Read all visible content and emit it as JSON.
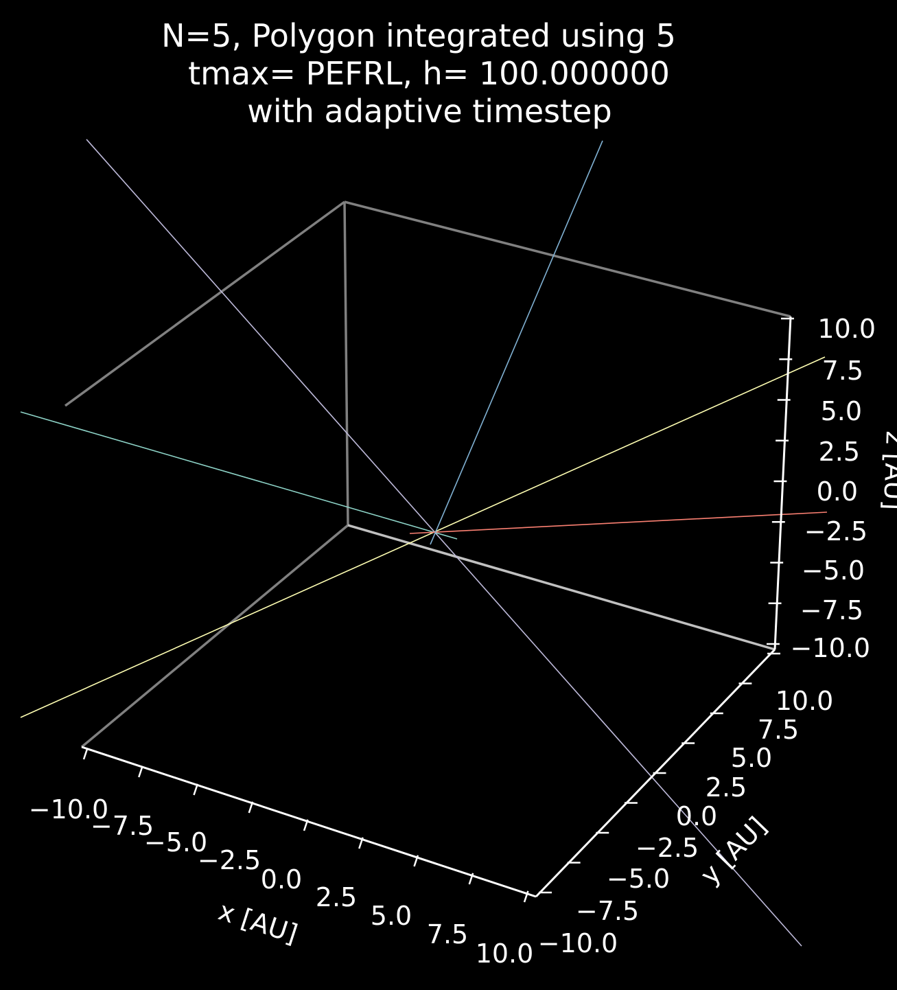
{
  "chart_data": {
    "type": "line",
    "projection": "3d",
    "title_lines": [
      "N=5, Polygon integrated using 5",
      "tmax= PEFRL, h= 100.000000",
      "with adaptive timestep"
    ],
    "xlabel": "x [AU]",
    "ylabel": "y [AU]",
    "zlabel": "z [AU]",
    "xlim": [
      -10,
      10
    ],
    "ylim": [
      -10,
      10
    ],
    "zlim": [
      -10,
      10
    ],
    "x_ticks": [
      "−10.0",
      "−7.5",
      "−5.0",
      "−2.5",
      "0.0",
      "2.5",
      "5.0",
      "7.5",
      "10.0"
    ],
    "y_ticks": [
      "−10.0",
      "−7.5",
      "−5.0",
      "−2.5",
      "0.0",
      "2.5",
      "5.0",
      "7.5",
      "10.0"
    ],
    "z_ticks": [
      "−10.0",
      "−7.5",
      "−5.0",
      "−2.5",
      "0.0",
      "2.5",
      "5.0",
      "7.5",
      "10.0"
    ],
    "background": "#000000",
    "grid": false,
    "series": [
      {
        "color": "#8dd3c7"
      },
      {
        "color": "#ffffb3"
      },
      {
        "color": "#bebada"
      },
      {
        "color": "#fb8072"
      },
      {
        "color": "#80b1d3"
      }
    ]
  }
}
